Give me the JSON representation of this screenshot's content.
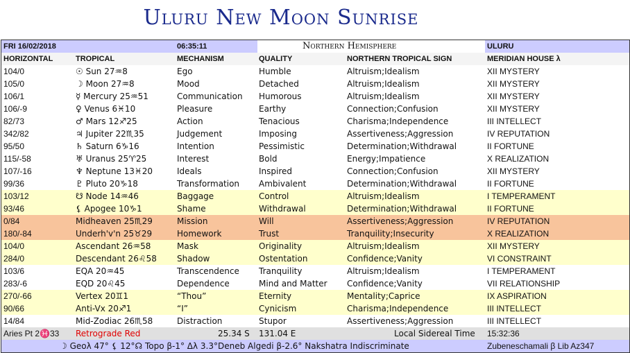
{
  "title": "Uluru New Moon Sunrise",
  "header": {
    "date": "FRI 16/02/2018",
    "time": "06:35:11",
    "hemisphere": "Northern Hemisphere",
    "location": "ULURU"
  },
  "columns": [
    "HORIZONTAL",
    "TROPICAL",
    "MECHANISM",
    "QUALITY",
    "NORTHERN TROPICAL SIGN",
    "MERIDIAN HOUSE λ"
  ],
  "colors": {
    "lavender": "#ccccff",
    "yellow": "#ffffcc",
    "orange": "#f8c49c",
    "gray": "#e0e0e0",
    "title": "#1a2a8c",
    "retrograde": "#e00000"
  },
  "rows": [
    {
      "h": "104/0",
      "t": "☉ Sun 27♒8",
      "m": "Ego",
      "q": "Humble",
      "s": "Altruism;Idealism",
      "house": "XII MYSTERY",
      "bg": "white"
    },
    {
      "h": "105/0",
      "t": "☽ Moon 27♒8",
      "m": "Mood",
      "q": "Detached",
      "s": "Altruism;Idealism",
      "house": "XII MYSTERY",
      "bg": "white"
    },
    {
      "h": "106/1",
      "t": "☿ Mercury 25♒51",
      "m": "Communication",
      "q": "Humorous",
      "s": "Altruism;Idealism",
      "house": "XII MYSTERY",
      "bg": "white"
    },
    {
      "h": "106/-9",
      "t": "♀ Venus 6♓10",
      "m": "Pleasure",
      "q": "Earthy",
      "s": "Connection;Confusion",
      "house": "XII MYSTERY",
      "bg": "white"
    },
    {
      "h": "82/73",
      "t": "♂ Mars 12♐25",
      "m": "Action",
      "q": "Tenacious",
      "s": "Charisma;Independence",
      "house": "III INTELLECT",
      "bg": "white"
    },
    {
      "h": "342/82",
      "t": "♃ Jupiter 22♏35",
      "m": "Judgement",
      "q": "Imposing",
      "s": "Assertiveness;Aggression",
      "house": "IV REPUTATION",
      "bg": "white"
    },
    {
      "h": "95/50",
      "t": "♄ Saturn 6♑16",
      "m": "Intention",
      "q": "Pessimistic",
      "s": "Determination;Withdrawal",
      "house": "II FORTUNE",
      "bg": "white"
    },
    {
      "h": "115/-58",
      "t": "♅ Uranus 25♈25",
      "m": "Interest",
      "q": "Bold",
      "s": "Energy;Impatience",
      "house": "X REALIZATION",
      "bg": "white"
    },
    {
      "h": "107/-16",
      "t": "♆ Neptune 13♓20",
      "m": "Ideals",
      "q": "Inspired",
      "s": "Connection;Confusion",
      "house": "XII MYSTERY",
      "bg": "white"
    },
    {
      "h": "99/36",
      "t": "♇ Pluto 20♑18",
      "m": "Transformation",
      "q": "Ambivalent",
      "s": "Determination;Withdrawal",
      "house": "II FORTUNE",
      "bg": "white"
    },
    {
      "h": "103/12",
      "t": "☋ Node 14♒46",
      "m": "Baggage",
      "q": "Control",
      "s": "Altruism;Idealism",
      "house": "I TEMPERAMENT",
      "bg": "yel"
    },
    {
      "h": "93/46",
      "t": "⚸ Apogee 10♑1",
      "m": "Shame",
      "q": "Withdrawal",
      "s": "Determination;Withdrawal",
      "house": "II FORTUNE",
      "bg": "yel"
    },
    {
      "h": "0/84",
      "t": "Midheaven 25♏29",
      "m": "Mission",
      "q": "Will",
      "s": "Assertiveness;Aggression",
      "house": "IV REPUTATION",
      "bg": "org"
    },
    {
      "h": "180/-84",
      "t": "Underh'v'n 25♉29",
      "m": "Homework",
      "q": "Trust",
      "s": "Tranquility;Insecurity",
      "house": "X REALIZATION",
      "bg": "org"
    },
    {
      "h": "104/0",
      "t": "Ascendant 26♒58",
      "m": "Mask",
      "q": "Originality",
      "s": "Altruism;Idealism",
      "house": "XII MYSTERY",
      "bg": "yel"
    },
    {
      "h": "284/0",
      "t": "Descendant 26♌58",
      "m": "Shadow",
      "q": "Ostentation",
      "s": "Confidence;Vanity",
      "house": "VI CONSTRAINT",
      "bg": "yel"
    },
    {
      "h": "103/6",
      "t": "EQA 20♒45",
      "m": "Transcendence",
      "q": "Tranquility",
      "s": "Altruism;Idealism",
      "house": "I TEMPERAMENT",
      "bg": "white"
    },
    {
      "h": "283/-6",
      "t": "EQD 20♌45",
      "m": "Dependence",
      "q": "Mind and Matter",
      "s": "Confidence;Vanity",
      "house": "VII RELATIONSHIP",
      "bg": "white"
    },
    {
      "h": "270/-66",
      "t": "Vertex 20♊1",
      "m": "“Thou”",
      "q": "Eternity",
      "s": "Mentality;Caprice",
      "house": "IX ASPIRATION",
      "bg": "yel"
    },
    {
      "h": "90/66",
      "t": "Anti-Vx 20♐1",
      "m": "“I”",
      "q": "Cynicism",
      "s": "Charisma;Independence",
      "house": "III INTELLECT",
      "bg": "yel"
    },
    {
      "h": "14/84",
      "t": "Mid-Zodiac 26♏58",
      "m": "Distraction",
      "q": "Stupor",
      "s": "Assertiveness;Aggression",
      "house": "III INTELLECT",
      "bg": "white"
    }
  ],
  "footer": {
    "aries": "Aries Pt 2♓33",
    "retro": "Retrograde Red",
    "lat": "25.34 S",
    "lon": "131.04 E",
    "lst_label": "Local Sidereal Time",
    "lst": "15:32:36",
    "info": "☽ Geoλ 47° ⚸ 12°☊ Topo β-1° Δλ 3.3°Deneb Algedi β-2.6° Nakshatra Indiscriminate",
    "star": "Zubeneschamali β Lib Az347"
  }
}
